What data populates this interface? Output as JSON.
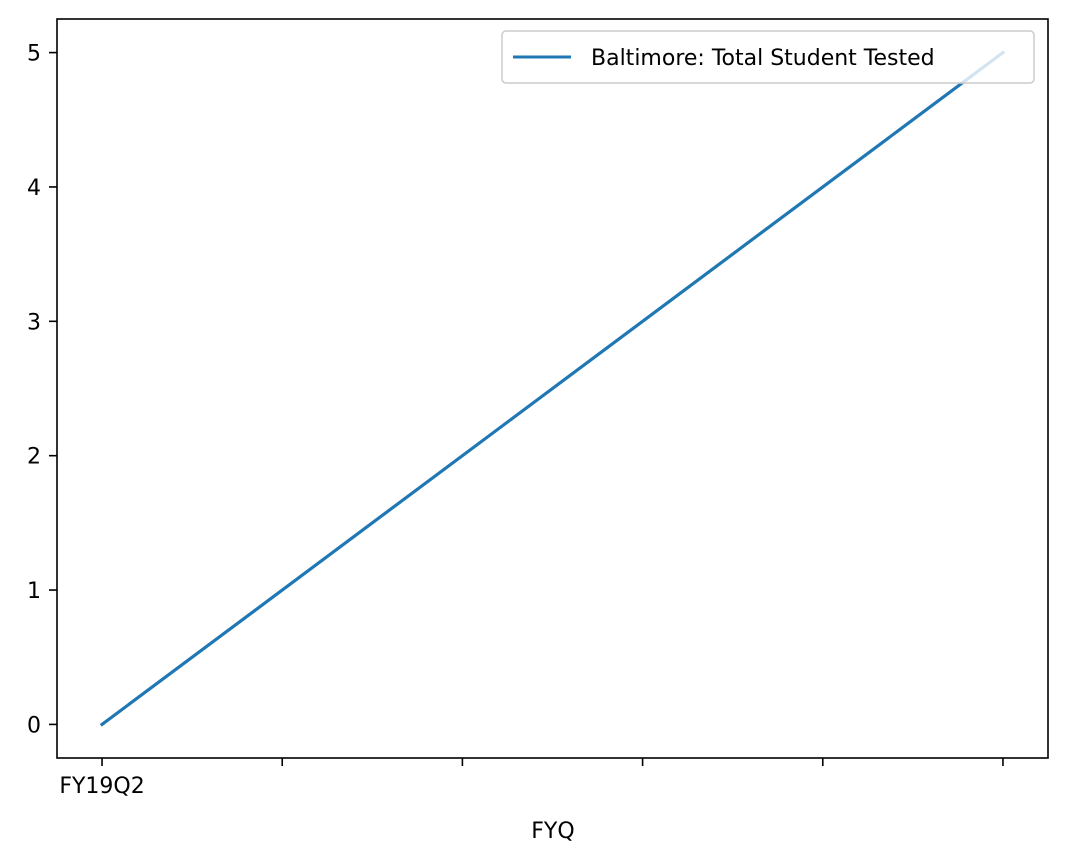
{
  "chart_data": {
    "type": "line",
    "title": "",
    "xlabel": "FYQ",
    "ylabel": "",
    "x_positions": [
      0,
      1,
      2,
      3,
      4,
      5
    ],
    "x_tick_labels": [
      "FY19Q2",
      "",
      "",
      "",
      "",
      ""
    ],
    "y_ticks": [
      0,
      1,
      2,
      3,
      4,
      5
    ],
    "xlim": [
      -0.25,
      5.25
    ],
    "ylim": [
      -0.25,
      5.25
    ],
    "grid": false,
    "legend_position": "top-right",
    "series": [
      {
        "name": "Baltimore: Total Student Tested",
        "color": "#1f77b4",
        "x": [
          0,
          5
        ],
        "y": [
          0,
          5
        ]
      }
    ]
  }
}
